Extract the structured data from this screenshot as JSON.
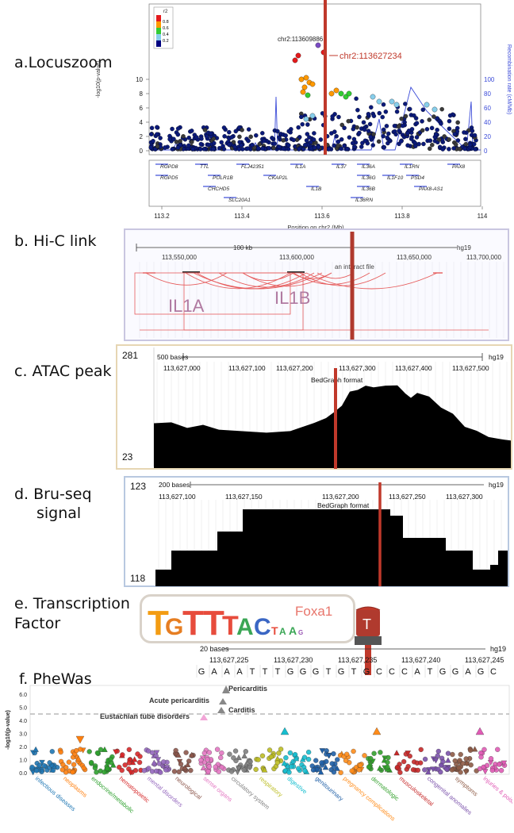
{
  "figure": {
    "labels": {
      "a": "a.Locuszoom",
      "b": "b. Hi-C link",
      "c": "c. ATAC peak",
      "d1": "d. Bru-seq",
      "d2": "signal",
      "e1": "e. Transcription",
      "e2": "Factor",
      "f": "f. PheWas"
    }
  },
  "locuszoom": {
    "ylabel": "-log10(p-value)",
    "ylabel_right": "Recombination rate (cM/Mb)",
    "xlabel": "Position on chr2 (Mb)",
    "yticks": [
      "0",
      "2",
      "4",
      "6",
      "8",
      "10"
    ],
    "yticks_right": [
      "0",
      "20",
      "40",
      "60",
      "80",
      "100"
    ],
    "xticks": [
      "113.2",
      "113.4",
      "113.6",
      "113.8",
      "114"
    ],
    "legend_title": "r2",
    "legend_items": [
      "0.8",
      "0.6",
      "0.4",
      "0.2"
    ],
    "legend_colors": [
      "#e41a1c",
      "#ff9900",
      "#33cc33",
      "#87ceeb",
      "#000080"
    ],
    "lead_snp": "chr2:113609886",
    "highlight_snp": "chr2:113627234",
    "highlight_color": "#c0392b",
    "genes": {
      "row1": [
        "RGPD8",
        "TTL",
        "FLJ42351",
        "IL1A",
        "IL37",
        "IL36A",
        "IL1RN",
        "PAX8"
      ],
      "row2": [
        "RGPD5",
        "POLR1B",
        "CKAP2L",
        "IL36G",
        "IL1F10",
        "PSD4"
      ],
      "row3": [
        "CHCHD5",
        "IL1B",
        "IL36B",
        "PAX8-AS1"
      ],
      "row4": [
        "SLC20A1",
        "IL36RN"
      ]
    }
  },
  "hic": {
    "scale": "100 kb",
    "assembly": "hg19",
    "positions": [
      "113,550,000",
      "113,600,000",
      "113,650,000",
      "113,700,000"
    ],
    "track": "an interact file",
    "gene1": "IL1A",
    "gene2": "IL1B"
  },
  "atac": {
    "ymax": "281",
    "ymin": "23",
    "scale": "500 bases",
    "assembly": "hg19",
    "positions": [
      "113,627,000",
      "113,627,100",
      "113,627,200",
      "113,627,300",
      "113,627,400",
      "113,627,500"
    ],
    "track": "BedGraph format"
  },
  "bruseq": {
    "ymax": "123",
    "ymin": "118",
    "scale": "200 bases",
    "assembly": "hg19",
    "positions": [
      "113,627,100",
      "113,627,150",
      "113,627,200",
      "113,627,250",
      "113,627,300"
    ],
    "track": "BedGraph format"
  },
  "tf": {
    "motif_name": "Foxa1",
    "allele": "T",
    "scale": "20 bases",
    "assembly": "hg19",
    "positions": [
      "113,627,225",
      "113,627,230",
      "113,627,235",
      "113,627,240",
      "113,627,245"
    ],
    "sequence": [
      "G",
      "A",
      "A",
      "A",
      "T",
      "T",
      "T",
      "G",
      "G",
      "G",
      "T",
      "G",
      "T",
      "G",
      "C",
      "C",
      "C",
      "A",
      "T",
      "G",
      "G",
      "A",
      "G",
      "C"
    ]
  },
  "phewas": {
    "ylabel": "-log10(p-value)",
    "yticks": [
      "0.0",
      "1.0",
      "2.0",
      "3.0",
      "4.0",
      "5.0",
      "6.0"
    ],
    "annotations": [
      "Pericarditis",
      "Acute pericarditis",
      "Carditis",
      "Eustachian tube disorders"
    ],
    "categories": [
      {
        "name": "infectious diseases",
        "color": "#1f77b4"
      },
      {
        "name": "neoplasms",
        "color": "#ff7f0e"
      },
      {
        "name": "endocrine/metabolic",
        "color": "#2ca02c"
      },
      {
        "name": "hematopoietic",
        "color": "#d62728"
      },
      {
        "name": "mental disorders",
        "color": "#9467bd"
      },
      {
        "name": "neurological",
        "color": "#8c564b"
      },
      {
        "name": "sense organs",
        "color": "#e377c2"
      },
      {
        "name": "circulatory system",
        "color": "#7f7f7f"
      },
      {
        "name": "respiratory",
        "color": "#bcbd22"
      },
      {
        "name": "digestive",
        "color": "#17becf"
      },
      {
        "name": "genitourinary",
        "color": "#1f5fa6"
      },
      {
        "name": "pregnancy complications",
        "color": "#ff8c1a"
      },
      {
        "name": "dermatologic",
        "color": "#33a02c"
      },
      {
        "name": "musculoskeletal",
        "color": "#c62828"
      },
      {
        "name": "congenital anomalies",
        "color": "#7b52ab"
      },
      {
        "name": "symptoms",
        "color": "#8d5a45"
      },
      {
        "name": "injuries & poisonings",
        "color": "#e05bb5"
      }
    ]
  }
}
